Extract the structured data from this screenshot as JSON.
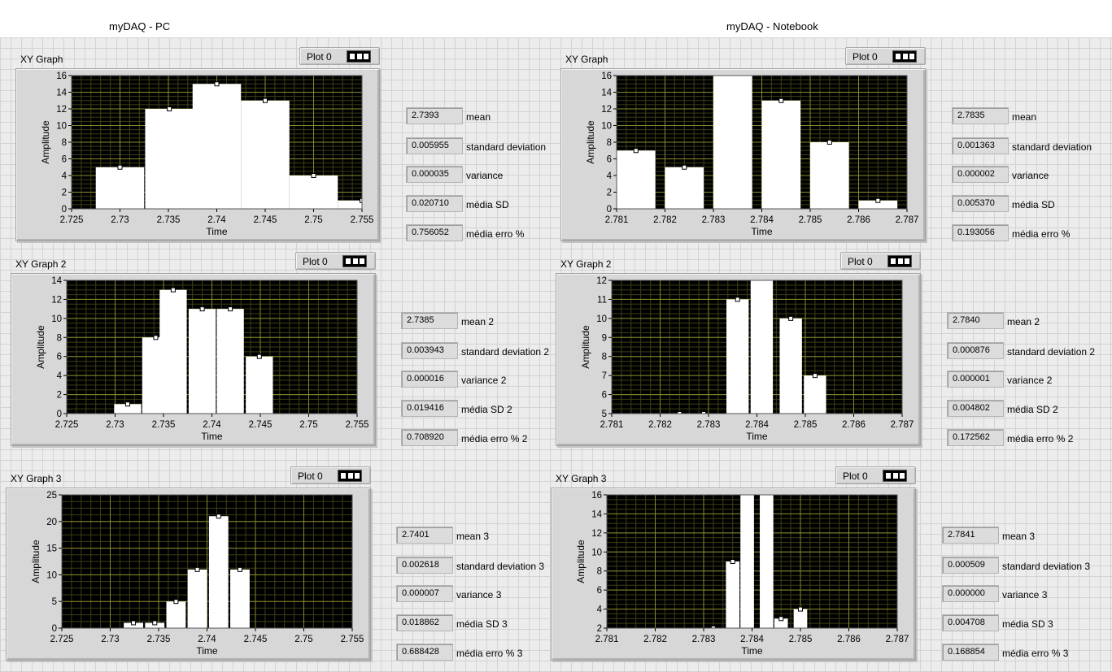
{
  "headers": {
    "pc": "myDAQ - PC",
    "notebook": "myDAQ - Notebook"
  },
  "legend_label": "Plot 0",
  "graphs": [
    {
      "caption": "XY Graph",
      "chart_data": {
        "type": "bar",
        "xlabel": "Time",
        "ylabel": "Amplitude",
        "xlim": [
          2.725,
          2.755
        ],
        "ylim": [
          0,
          16
        ],
        "xticks": [
          "2.725",
          "2.73",
          "2.735",
          "2.74",
          "2.745",
          "2.75",
          "2.755"
        ],
        "yticks": [
          "0",
          "2",
          "4",
          "6",
          "8",
          "10",
          "12",
          "14",
          "16"
        ],
        "bar_width": 0.005,
        "x": [
          2.73,
          2.7351,
          2.74,
          2.745,
          2.75,
          2.755
        ],
        "values": [
          5,
          12,
          15,
          13,
          4,
          1
        ]
      }
    },
    {
      "caption": "XY Graph 2",
      "chart_data": {
        "type": "bar",
        "xlabel": "Time",
        "ylabel": "Amplitude",
        "xlim": [
          2.725,
          2.755
        ],
        "ylim": [
          0,
          14
        ],
        "xticks": [
          "2.725",
          "2.73",
          "2.735",
          "2.74",
          "2.745",
          "2.75",
          "2.755"
        ],
        "yticks": [
          "0",
          "2",
          "4",
          "6",
          "8",
          "10",
          "12",
          "14"
        ],
        "bar_width": 0.0028,
        "x": [
          2.7313,
          2.7342,
          2.736,
          2.739,
          2.7419,
          2.7449
        ],
        "values": [
          1,
          8,
          13,
          11,
          11,
          6
        ]
      }
    },
    {
      "caption": "XY Graph 3",
      "chart_data": {
        "type": "bar",
        "xlabel": "Time",
        "ylabel": "Amplitude",
        "xlim": [
          2.725,
          2.755
        ],
        "ylim": [
          0,
          25
        ],
        "xticks": [
          "2.725",
          "2.73",
          "2.735",
          "2.74",
          "2.745",
          "2.75",
          "2.755"
        ],
        "yticks": [
          "0",
          "5",
          "10",
          "15",
          "20",
          "25"
        ],
        "bar_width": 0.002,
        "x": [
          2.7324,
          2.7346,
          2.7368,
          2.739,
          2.7412,
          2.7434
        ],
        "values": [
          1,
          1,
          5,
          11,
          21,
          11
        ]
      }
    },
    {
      "caption": "XY Graph",
      "chart_data": {
        "type": "bar",
        "xlabel": "Time",
        "ylabel": "Amplitude",
        "xlim": [
          2.781,
          2.787
        ],
        "ylim": [
          0,
          16
        ],
        "xticks": [
          "2.781",
          "2.782",
          "2.783",
          "2.784",
          "2.785",
          "2.786",
          "2.787"
        ],
        "yticks": [
          "0",
          "2",
          "4",
          "6",
          "8",
          "10",
          "12",
          "14",
          "16"
        ],
        "bar_width": 0.0008,
        "x": [
          2.7814,
          2.7824,
          2.7834,
          2.7844,
          2.7854,
          2.7864
        ],
        "values": [
          7,
          5,
          16,
          13,
          8,
          1
        ]
      }
    },
    {
      "caption": "XY Graph 2",
      "chart_data": {
        "type": "bar",
        "xlabel": "Time",
        "ylabel": "Amplitude",
        "xlim": [
          2.781,
          2.787
        ],
        "ylim": [
          5,
          12
        ],
        "xticks": [
          "2.781",
          "2.782",
          "2.783",
          "2.784",
          "2.785",
          "2.786",
          "2.787"
        ],
        "yticks": [
          "5",
          "6",
          "7",
          "8",
          "9",
          "10",
          "11",
          "12"
        ],
        "bar_width": 0.00046,
        "x": [
          2.7824,
          2.7829,
          2.7836,
          2.7841,
          2.7847,
          2.7852
        ],
        "values": [
          5,
          5,
          11,
          12,
          10,
          7
        ]
      }
    },
    {
      "caption": "XY Graph 3",
      "chart_data": {
        "type": "bar",
        "xlabel": "Time",
        "ylabel": "Amplitude",
        "xlim": [
          2.781,
          2.787
        ],
        "ylim": [
          2,
          16
        ],
        "xticks": [
          "2.781",
          "2.782",
          "2.783",
          "2.784",
          "2.785",
          "2.786",
          "2.787"
        ],
        "yticks": [
          "2",
          "4",
          "6",
          "8",
          "10",
          "12",
          "14",
          "16"
        ],
        "bar_width": 0.00028,
        "x": [
          2.7832,
          2.7836,
          2.7839,
          2.7843,
          2.7846,
          2.785
        ],
        "values": [
          2,
          9,
          16,
          16,
          3,
          4
        ]
      }
    }
  ],
  "indicators": [
    [
      {
        "value": "2.7393",
        "label": "mean"
      },
      {
        "value": "0.005955",
        "label": "standard deviation"
      },
      {
        "value": "0.000035",
        "label": "variance"
      },
      {
        "value": "0.020710",
        "label": "média SD"
      },
      {
        "value": "0.756052",
        "label": "média erro %"
      }
    ],
    [
      {
        "value": "2.7385",
        "label": "mean 2"
      },
      {
        "value": "0.003943",
        "label": "standard deviation 2"
      },
      {
        "value": "0.000016",
        "label": "variance 2"
      },
      {
        "value": "0.019416",
        "label": "média SD 2"
      },
      {
        "value": "0.708920",
        "label": "média erro % 2"
      }
    ],
    [
      {
        "value": "2.7401",
        "label": "mean 3"
      },
      {
        "value": "0.002618",
        "label": "standard deviation 3"
      },
      {
        "value": "0.000007",
        "label": "variance 3"
      },
      {
        "value": "0.018862",
        "label": "média SD 3"
      },
      {
        "value": "0.688428",
        "label": "média erro % 3"
      }
    ],
    [
      {
        "value": "2.7835",
        "label": "mean"
      },
      {
        "value": "0.001363",
        "label": "standard deviation"
      },
      {
        "value": "0.000002",
        "label": "variance"
      },
      {
        "value": "0.005370",
        "label": "média SD"
      },
      {
        "value": "0.193056",
        "label": "média erro %"
      }
    ],
    [
      {
        "value": "2.7840",
        "label": "mean 2"
      },
      {
        "value": "0.000876",
        "label": "standard deviation 2"
      },
      {
        "value": "0.000001",
        "label": "variance 2"
      },
      {
        "value": "0.004802",
        "label": "média SD 2"
      },
      {
        "value": "0.172562",
        "label": "média erro % 2"
      }
    ],
    [
      {
        "value": "2.7841",
        "label": "mean 3"
      },
      {
        "value": "0.000509",
        "label": "standard deviation 3"
      },
      {
        "value": "0.000000",
        "label": "variance 3"
      },
      {
        "value": "0.004708",
        "label": "média SD 3"
      },
      {
        "value": "0.168854",
        "label": "média erro % 3"
      }
    ]
  ],
  "colors": {
    "plot_bg": "#000000",
    "major_grid": "#8a8a2c",
    "minor_grid": "#3e3e16",
    "bar": "#ffffff",
    "panel": "#d7d7d7",
    "canvas": "#ececec"
  }
}
